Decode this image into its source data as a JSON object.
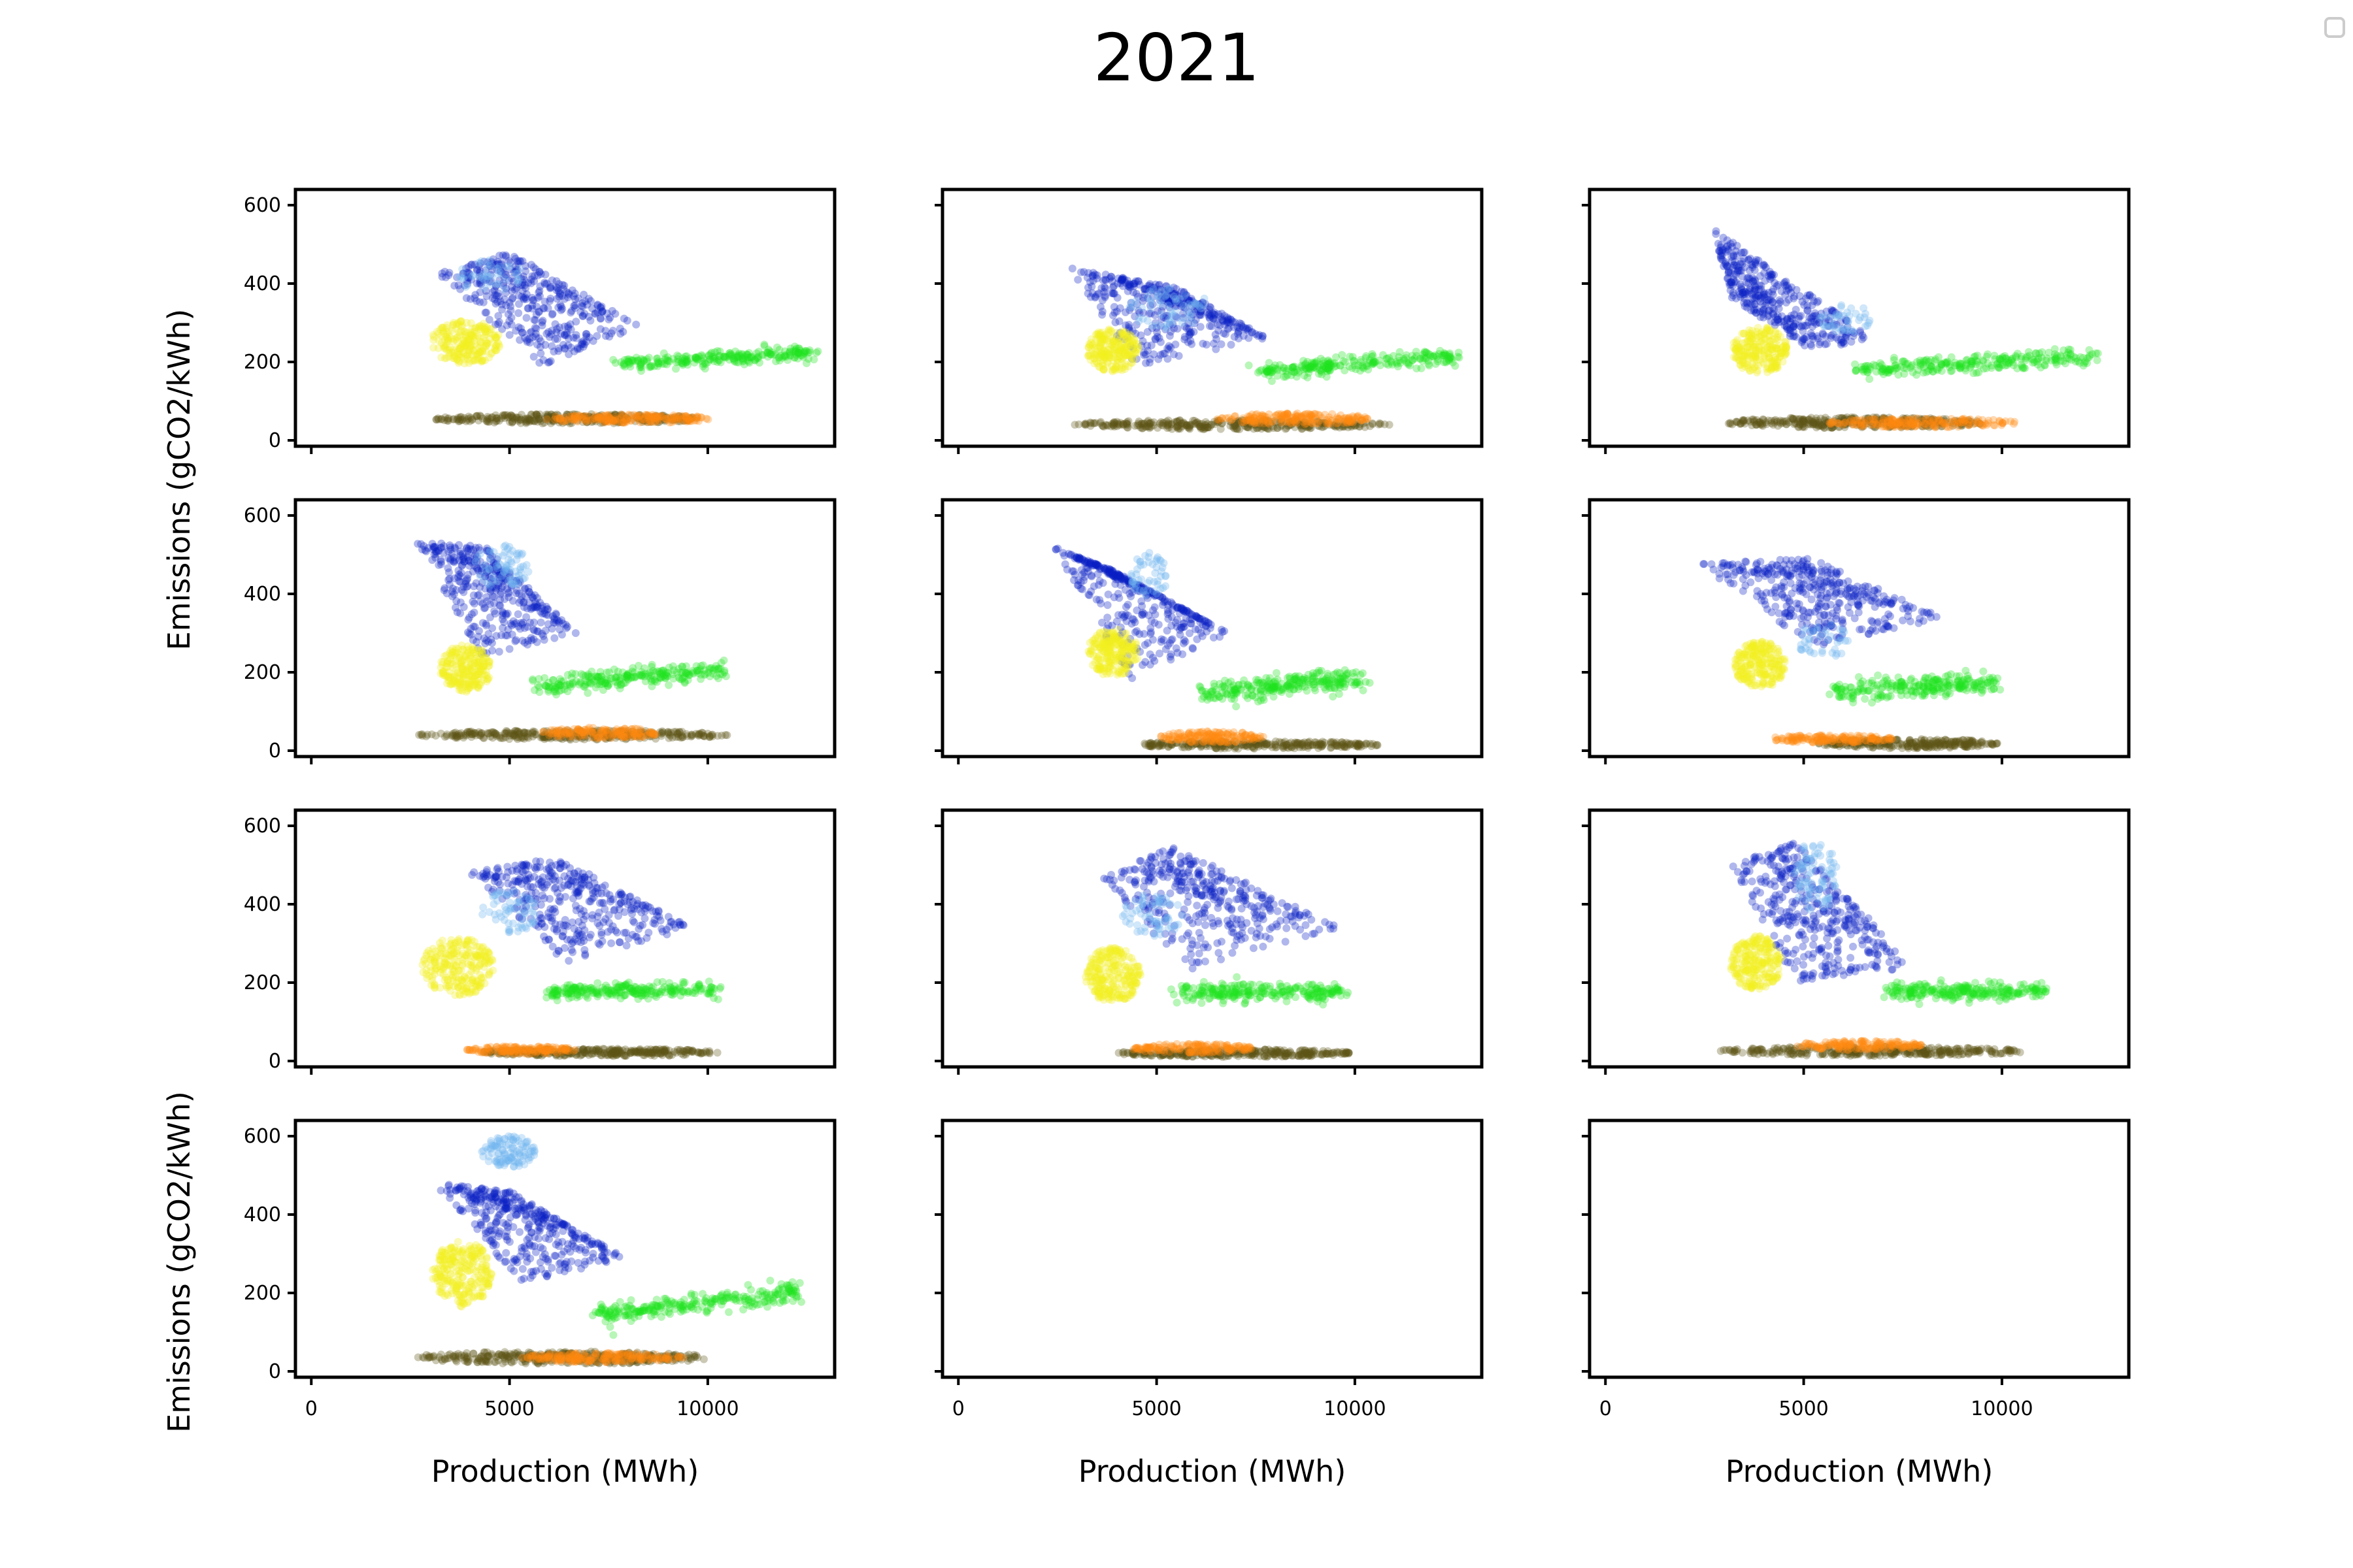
{
  "figure": {
    "title": "2021"
  },
  "colors": {
    "navy": "#0a1fc4",
    "lightblue": "#6fb4ef",
    "yellow": "#f2ee1e",
    "green": "#1fe21f",
    "orange": "#ff8a10",
    "olive": "#5c5416"
  },
  "chart_data": {
    "type": "scatter",
    "grid": false,
    "layout": {
      "rows": 4,
      "cols": 3
    },
    "xlabel": "Production (MWh)",
    "ylabel": "Emissions (gCO2/kWh)",
    "xlim": [
      -400,
      13200
    ],
    "ylim": [
      -15,
      640
    ],
    "xticks": [
      0,
      5000,
      10000
    ],
    "xtick_labels": [
      "0",
      "5000",
      "10000"
    ],
    "yticks": [
      0,
      200,
      400,
      600
    ],
    "ytick_labels": [
      "0",
      "200",
      "400",
      "600"
    ],
    "legend": "top-right (empty)",
    "panels": [
      {
        "empty": false,
        "clusters": [
          {
            "color": "navy",
            "shape": "tri",
            "pts": [
              [
                3100,
                430
              ],
              [
                5000,
                480
              ],
              [
                8300,
                290
              ],
              [
                5800,
                190
              ]
            ],
            "n": 380
          },
          {
            "color": "lightblue",
            "shape": "ell",
            "cx": 4500,
            "cy": 420,
            "rx": 900,
            "ry": 40,
            "n": 40
          },
          {
            "color": "yellow",
            "shape": "ell",
            "cx": 3900,
            "cy": 250,
            "rx": 900,
            "ry": 55,
            "n": 220
          },
          {
            "color": "green",
            "shape": "band",
            "x0": 7800,
            "y0": 195,
            "x1": 12600,
            "y1": 225,
            "th": 18,
            "n": 250
          },
          {
            "color": "olive",
            "shape": "ell",
            "cx": 6500,
            "cy": 55,
            "rx": 3400,
            "ry": 12,
            "n": 320
          },
          {
            "color": "orange",
            "shape": "ell",
            "cx": 8000,
            "cy": 55,
            "rx": 2100,
            "ry": 11,
            "n": 180
          }
        ]
      },
      {
        "empty": false,
        "clusters": [
          {
            "color": "navy",
            "shape": "tri",
            "pts": [
              [
                2800,
                440
              ],
              [
                5500,
                390
              ],
              [
                7800,
                260
              ],
              [
                4500,
                190
              ]
            ],
            "n": 380
          },
          {
            "color": "lightblue",
            "shape": "ell",
            "cx": 5300,
            "cy": 340,
            "rx": 1000,
            "ry": 55,
            "n": 60
          },
          {
            "color": "yellow",
            "shape": "ell",
            "cx": 3900,
            "cy": 230,
            "rx": 650,
            "ry": 55,
            "n": 220
          },
          {
            "color": "green",
            "shape": "band",
            "x0": 7600,
            "y0": 175,
            "x1": 12600,
            "y1": 215,
            "th": 20,
            "n": 250
          },
          {
            "color": "olive",
            "shape": "ell",
            "cx": 6800,
            "cy": 40,
            "rx": 4100,
            "ry": 12,
            "n": 320
          },
          {
            "color": "orange",
            "shape": "ell",
            "cx": 8500,
            "cy": 55,
            "rx": 2000,
            "ry": 14,
            "n": 180
          }
        ]
      },
      {
        "empty": false,
        "clusters": [
          {
            "color": "navy",
            "shape": "tri",
            "pts": [
              [
                2700,
                540
              ],
              [
                6800,
                260
              ],
              [
                5200,
                230
              ],
              [
                3200,
                360
              ]
            ],
            "n": 380
          },
          {
            "color": "lightblue",
            "shape": "ell",
            "cx": 6100,
            "cy": 310,
            "rx": 700,
            "ry": 40,
            "n": 40
          },
          {
            "color": "yellow",
            "shape": "ell",
            "cx": 3900,
            "cy": 230,
            "rx": 700,
            "ry": 60,
            "n": 220
          },
          {
            "color": "green",
            "shape": "band",
            "x0": 6400,
            "y0": 180,
            "x1": 12400,
            "y1": 215,
            "th": 22,
            "n": 260
          },
          {
            "color": "olive",
            "shape": "ell",
            "cx": 6300,
            "cy": 45,
            "rx": 3300,
            "ry": 14,
            "n": 320
          },
          {
            "color": "orange",
            "shape": "ell",
            "cx": 8000,
            "cy": 45,
            "rx": 2400,
            "ry": 12,
            "n": 180
          }
        ]
      },
      {
        "empty": false,
        "clusters": [
          {
            "color": "navy",
            "shape": "tri",
            "pts": [
              [
                2600,
                540
              ],
              [
                4400,
                520
              ],
              [
                6700,
                300
              ],
              [
                4300,
                240
              ]
            ],
            "n": 380
          },
          {
            "color": "lightblue",
            "shape": "ell",
            "cx": 4800,
            "cy": 470,
            "rx": 700,
            "ry": 55,
            "n": 70
          },
          {
            "color": "yellow",
            "shape": "ell",
            "cx": 3900,
            "cy": 210,
            "rx": 650,
            "ry": 60,
            "n": 220
          },
          {
            "color": "green",
            "shape": "band",
            "x0": 5500,
            "y0": 165,
            "x1": 10400,
            "y1": 205,
            "th": 22,
            "n": 250
          },
          {
            "color": "olive",
            "shape": "ell",
            "cx": 6600,
            "cy": 40,
            "rx": 3900,
            "ry": 12,
            "n": 320
          },
          {
            "color": "orange",
            "shape": "ell",
            "cx": 7300,
            "cy": 45,
            "rx": 1500,
            "ry": 14,
            "n": 140
          }
        ]
      },
      {
        "empty": false,
        "clusters": [
          {
            "color": "navy",
            "shape": "tri",
            "pts": [
              [
                2400,
                520
              ],
              [
                3900,
                460
              ],
              [
                6800,
                300
              ],
              [
                4300,
                180
              ]
            ],
            "n": 380
          },
          {
            "color": "lightblue",
            "shape": "ell",
            "cx": 4800,
            "cy": 450,
            "rx": 500,
            "ry": 60,
            "n": 50
          },
          {
            "color": "yellow",
            "shape": "ell",
            "cx": 3900,
            "cy": 250,
            "rx": 650,
            "ry": 60,
            "n": 220
          },
          {
            "color": "green",
            "shape": "band",
            "x0": 6100,
            "y0": 145,
            "x1": 10200,
            "y1": 185,
            "th": 30,
            "n": 260
          },
          {
            "color": "olive",
            "shape": "ell",
            "cx": 7500,
            "cy": 15,
            "rx": 3100,
            "ry": 10,
            "n": 280
          },
          {
            "color": "orange",
            "shape": "ell",
            "cx": 6400,
            "cy": 35,
            "rx": 1300,
            "ry": 15,
            "n": 140
          }
        ]
      },
      {
        "empty": false,
        "clusters": [
          {
            "color": "navy",
            "shape": "tri",
            "pts": [
              [
                2300,
                480
              ],
              [
                5200,
                490
              ],
              [
                8500,
                340
              ],
              [
                5300,
                260
              ]
            ],
            "n": 380
          },
          {
            "color": "lightblue",
            "shape": "ell",
            "cx": 5500,
            "cy": 280,
            "rx": 700,
            "ry": 45,
            "n": 40
          },
          {
            "color": "yellow",
            "shape": "ell",
            "cx": 3900,
            "cy": 220,
            "rx": 650,
            "ry": 60,
            "n": 220
          },
          {
            "color": "green",
            "shape": "band",
            "x0": 5800,
            "y0": 150,
            "x1": 9900,
            "y1": 175,
            "th": 26,
            "n": 240
          },
          {
            "color": "olive",
            "shape": "ell",
            "cx": 7600,
            "cy": 18,
            "rx": 2300,
            "ry": 12,
            "n": 260
          },
          {
            "color": "orange",
            "shape": "ell",
            "cx": 5700,
            "cy": 30,
            "rx": 1600,
            "ry": 10,
            "n": 140
          }
        ]
      },
      {
        "empty": false,
        "clusters": [
          {
            "color": "navy",
            "shape": "tri",
            "pts": [
              [
                4000,
                480
              ],
              [
                6200,
                520
              ],
              [
                9600,
                340
              ],
              [
                6400,
                250
              ]
            ],
            "n": 380
          },
          {
            "color": "lightblue",
            "shape": "ell",
            "cx": 5000,
            "cy": 380,
            "rx": 700,
            "ry": 55,
            "n": 60
          },
          {
            "color": "yellow",
            "shape": "ell",
            "cx": 3700,
            "cy": 240,
            "rx": 900,
            "ry": 75,
            "n": 240
          },
          {
            "color": "green",
            "shape": "band",
            "x0": 6000,
            "y0": 175,
            "x1": 10200,
            "y1": 185,
            "th": 22,
            "n": 240
          },
          {
            "color": "olive",
            "shape": "ell",
            "cx": 7300,
            "cy": 22,
            "rx": 3000,
            "ry": 10,
            "n": 300
          },
          {
            "color": "orange",
            "shape": "ell",
            "cx": 5300,
            "cy": 28,
            "rx": 1400,
            "ry": 10,
            "n": 140
          }
        ]
      },
      {
        "empty": false,
        "clusters": [
          {
            "color": "navy",
            "shape": "tri",
            "pts": [
              [
                3600,
                470
              ],
              [
                5400,
                550
              ],
              [
                9600,
                340
              ],
              [
                5800,
                230
              ]
            ],
            "n": 380
          },
          {
            "color": "lightblue",
            "shape": "ell",
            "cx": 4900,
            "cy": 370,
            "rx": 800,
            "ry": 55,
            "n": 60
          },
          {
            "color": "yellow",
            "shape": "ell",
            "cx": 3900,
            "cy": 220,
            "rx": 700,
            "ry": 70,
            "n": 230
          },
          {
            "color": "green",
            "shape": "band",
            "x0": 5600,
            "y0": 175,
            "x1": 9600,
            "y1": 175,
            "th": 22,
            "n": 240
          },
          {
            "color": "olive",
            "shape": "ell",
            "cx": 7000,
            "cy": 20,
            "rx": 3000,
            "ry": 10,
            "n": 300
          },
          {
            "color": "orange",
            "shape": "ell",
            "cx": 5900,
            "cy": 32,
            "rx": 1600,
            "ry": 12,
            "n": 140
          }
        ]
      },
      {
        "empty": false,
        "clusters": [
          {
            "color": "navy",
            "shape": "tri",
            "pts": [
              [
                3200,
                500
              ],
              [
                4800,
                560
              ],
              [
                7800,
                240
              ],
              [
                4800,
                200
              ]
            ],
            "n": 380
          },
          {
            "color": "lightblue",
            "shape": "ell",
            "cx": 5300,
            "cy": 470,
            "rx": 600,
            "ry": 90,
            "n": 80
          },
          {
            "color": "yellow",
            "shape": "ell",
            "cx": 3800,
            "cy": 250,
            "rx": 650,
            "ry": 70,
            "n": 220
          },
          {
            "color": "green",
            "shape": "band",
            "x0": 7200,
            "y0": 175,
            "x1": 11000,
            "y1": 180,
            "th": 22,
            "n": 240
          },
          {
            "color": "olive",
            "shape": "ell",
            "cx": 6700,
            "cy": 25,
            "rx": 3900,
            "ry": 12,
            "n": 320
          },
          {
            "color": "orange",
            "shape": "ell",
            "cx": 6400,
            "cy": 40,
            "rx": 1600,
            "ry": 12,
            "n": 140
          }
        ]
      },
      {
        "empty": false,
        "clusters": [
          {
            "color": "navy",
            "shape": "tri",
            "pts": [
              [
                3100,
                480
              ],
              [
                5000,
                460
              ],
              [
                7900,
                290
              ],
              [
                5300,
                220
              ]
            ],
            "n": 380
          },
          {
            "color": "lightblue",
            "shape": "ell",
            "cx": 5000,
            "cy": 560,
            "rx": 700,
            "ry": 40,
            "n": 110
          },
          {
            "color": "yellow",
            "shape": "ell",
            "cx": 3800,
            "cy": 250,
            "rx": 750,
            "ry": 85,
            "n": 240
          },
          {
            "color": "green",
            "shape": "band",
            "x0": 7200,
            "y0": 145,
            "x1": 12300,
            "y1": 200,
            "th": 24,
            "n": 260
          },
          {
            "color": "olive",
            "shape": "ell",
            "cx": 6300,
            "cy": 35,
            "rx": 3800,
            "ry": 16,
            "n": 360
          },
          {
            "color": "orange",
            "shape": "ell",
            "cx": 7300,
            "cy": 35,
            "rx": 2100,
            "ry": 12,
            "n": 180
          }
        ]
      },
      {
        "empty": true,
        "clusters": []
      },
      {
        "empty": true,
        "clusters": []
      }
    ]
  }
}
